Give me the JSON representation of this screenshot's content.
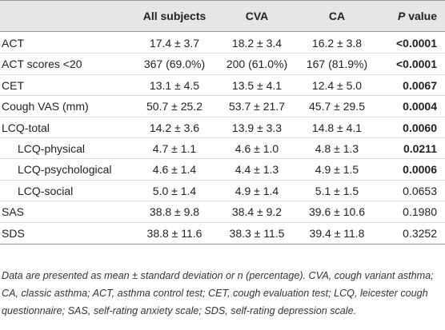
{
  "table": {
    "columns": [
      "All subjects",
      "CVA",
      "CA"
    ],
    "p_header": {
      "italic": "P",
      "text": "value"
    },
    "rows": [
      {
        "label": "ACT",
        "indent": false,
        "cells": [
          "17.4 ± 3.7",
          "18.2 ± 3.4",
          "16.2 ± 3.8"
        ],
        "p": "<0.0001",
        "p_bold": true
      },
      {
        "label": "ACT scores <20",
        "indent": false,
        "cells": [
          "367 (69.0%)",
          "200 (61.0%)",
          "167 (81.9%)"
        ],
        "p": "<0.0001",
        "p_bold": true
      },
      {
        "label": "CET",
        "indent": false,
        "cells": [
          "13.1 ± 4.5",
          "13.5 ± 4.1",
          "12.4 ± 5.0"
        ],
        "p": "0.0067",
        "p_bold": true
      },
      {
        "label": "Cough VAS (mm)",
        "indent": false,
        "cells": [
          "50.7 ± 25.2",
          "53.7 ± 21.7",
          "45.7 ± 29.5"
        ],
        "p": "0.0004",
        "p_bold": true
      },
      {
        "label": "LCQ-total",
        "indent": false,
        "cells": [
          "14.2 ± 3.6",
          "13.9 ± 3.3",
          "14.8 ± 4.1"
        ],
        "p": "0.0060",
        "p_bold": true
      },
      {
        "label": "LCQ-physical",
        "indent": true,
        "cells": [
          "4.7 ± 1.1",
          "4.6 ± 1.0",
          "4.8 ± 1.3"
        ],
        "p": "0.0211",
        "p_bold": true
      },
      {
        "label": "LCQ-psychological",
        "indent": true,
        "cells": [
          "4.6 ± 1.4",
          "4.4 ± 1.3",
          "4.9 ± 1.5"
        ],
        "p": "0.0006",
        "p_bold": true
      },
      {
        "label": "LCQ-social",
        "indent": true,
        "cells": [
          "5.0 ± 1.4",
          "4.9 ± 1.4",
          "5.1 ± 1.5"
        ],
        "p": "0.0653",
        "p_bold": false
      },
      {
        "label": "SAS",
        "indent": false,
        "cells": [
          "38.8 ± 9.8",
          "38.4 ± 9.2",
          "39.6 ± 10.6"
        ],
        "p": "0.1980",
        "p_bold": false
      },
      {
        "label": "SDS",
        "indent": false,
        "cells": [
          "38.8 ± 11.6",
          "38.3 ± 11.5",
          "39.4 ± 11.8"
        ],
        "p": "0.3252",
        "p_bold": false
      }
    ]
  },
  "footnote": "Data are presented as mean ± standard deviation or n (percentage). CVA, cough variant asthma; CA, classic asthma; ACT, asthma control test; CET, cough evaluation test; LCQ, leicester cough questionnaire; SAS, self-rating anxiety scale; SDS, self-rating depression scale."
}
